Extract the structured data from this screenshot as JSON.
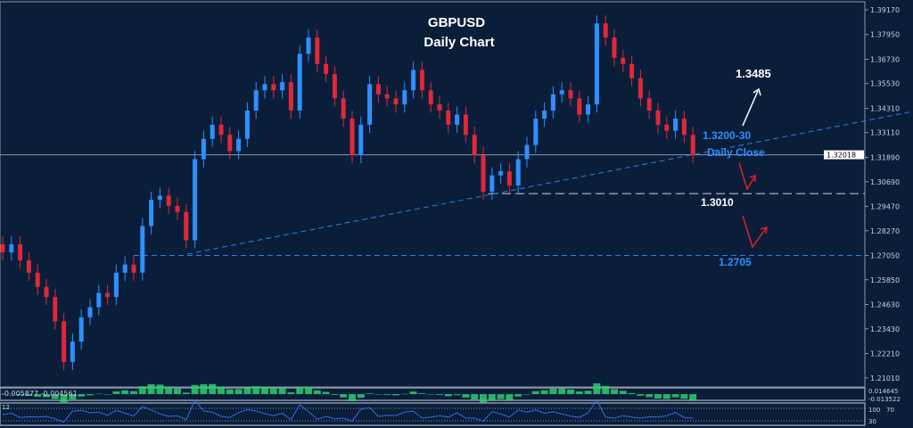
{
  "chart_data": {
    "type": "candlestick",
    "title": "GBPUSD",
    "subtitle": "Daily  Chart",
    "ylim": [
      1.205,
      1.396
    ],
    "y_ticks": [
      "1.39170",
      "1.37950",
      "1.36730",
      "1.35530",
      "1.34310",
      "1.33110",
      "1.31890",
      "1.30690",
      "1.29470",
      "1.28270",
      "1.27050",
      "1.25850",
      "1.24630",
      "1.23430",
      "1.22210",
      "1.21010"
    ],
    "current_price": "1.32018",
    "closes": [
      1.272,
      1.276,
      1.268,
      1.262,
      1.255,
      1.25,
      1.238,
      1.218,
      1.228,
      1.24,
      1.245,
      1.252,
      1.25,
      1.262,
      1.266,
      1.262,
      1.285,
      1.298,
      1.3,
      1.295,
      1.292,
      1.278,
      1.318,
      1.328,
      1.335,
      1.33,
      1.322,
      1.328,
      1.342,
      1.352,
      1.355,
      1.352,
      1.356,
      1.342,
      1.37,
      1.378,
      1.365,
      1.36,
      1.348,
      1.338,
      1.32,
      1.335,
      1.355,
      1.35,
      1.348,
      1.345,
      1.352,
      1.362,
      1.352,
      1.345,
      1.342,
      1.335,
      1.34,
      1.33,
      1.32,
      1.302,
      1.31,
      1.312,
      1.305,
      1.318,
      1.325,
      1.338,
      1.342,
      1.35,
      1.352,
      1.348,
      1.34,
      1.345,
      1.385,
      1.378,
      1.368,
      1.365,
      1.358,
      1.348,
      1.342,
      1.335,
      1.332,
      1.338,
      1.33,
      1.32
    ],
    "annotations": {
      "target_up": "1.3485",
      "pivot": "1.3200-30",
      "pivot_note": "Daily Close",
      "support_1": "1.3010",
      "support_2": "1.2705"
    },
    "levels": {
      "support_1": 1.301,
      "support_2": 1.2705
    },
    "colors": {
      "background": "#0a1e3a",
      "up": "#2f8fff",
      "down": "#e0283a",
      "annotation_blue": "#2f8fff",
      "annotation_white": "#ffffff",
      "arrow_red": "#e0202a"
    },
    "macd": {
      "label": "-0.005877 -0.004561",
      "ticks": [
        "0.014645",
        "-0.013522"
      ]
    },
    "oscillator": {
      "label": "12",
      "ticks": [
        "100",
        "70",
        "30"
      ]
    }
  }
}
